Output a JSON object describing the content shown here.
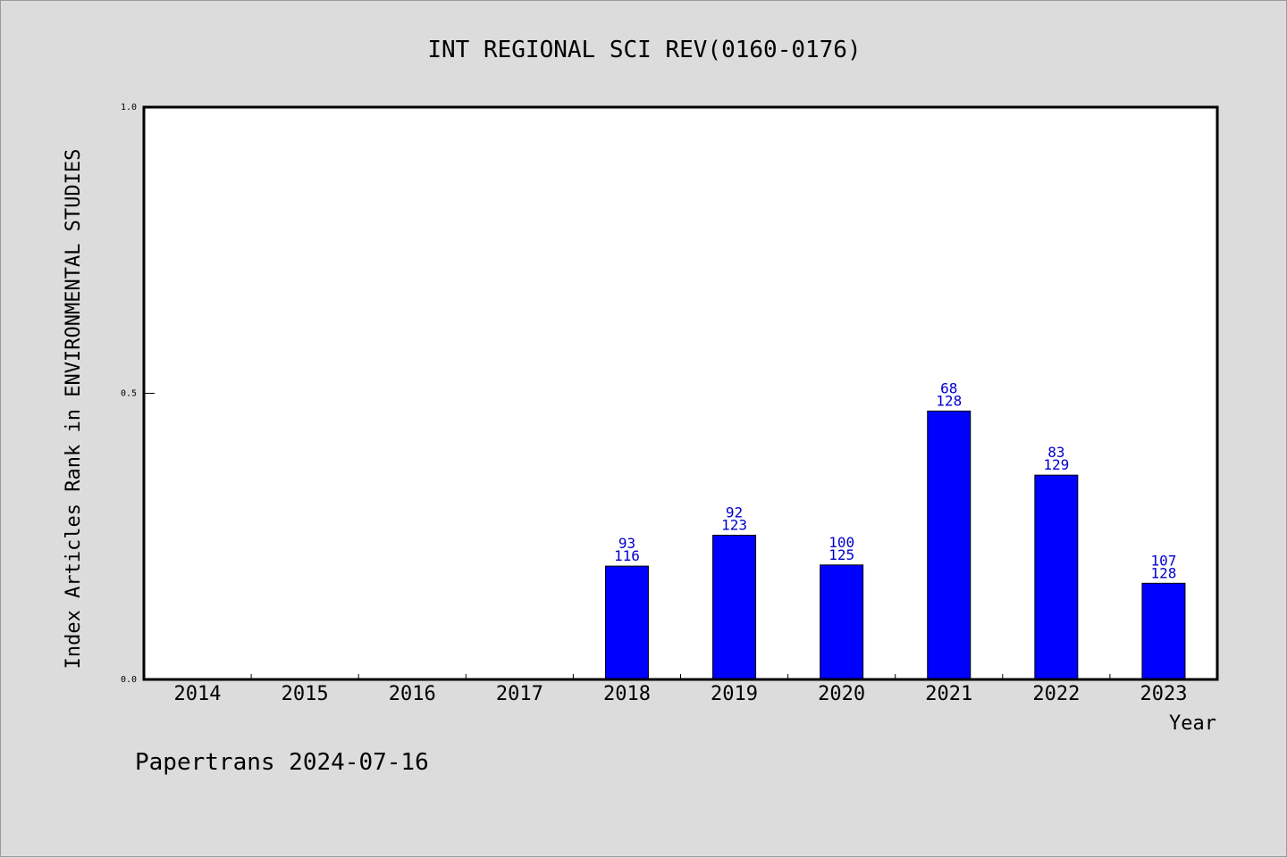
{
  "chart_data": {
    "type": "bar",
    "title": "INT REGIONAL SCI REV(0160-0176)",
    "xlabel": "Year",
    "ylabel": "Index Articles Rank in ENVIRONMENTAL STUDIES",
    "ylim": [
      0,
      1.0
    ],
    "yticks": [
      "0.0",
      "0.5",
      "1.0"
    ],
    "categories": [
      "2014",
      "2015",
      "2016",
      "2017",
      "2018",
      "2019",
      "2020",
      "2021",
      "2022",
      "2023"
    ],
    "values": [
      null,
      null,
      null,
      null,
      0.198,
      0.252,
      0.2,
      0.469,
      0.357,
      0.168
    ],
    "labels_top": [
      "",
      "",
      "",
      "",
      "93",
      "92",
      "100",
      "68",
      "83",
      "107"
    ],
    "labels_bottom": [
      "",
      "",
      "",
      "",
      "116",
      "123",
      "125",
      "128",
      "129",
      "128"
    ],
    "bar_color": "#0000ff",
    "label_color": "#0000cc",
    "grid": false
  },
  "footer": {
    "text": "Papertrans 2024-07-16"
  }
}
